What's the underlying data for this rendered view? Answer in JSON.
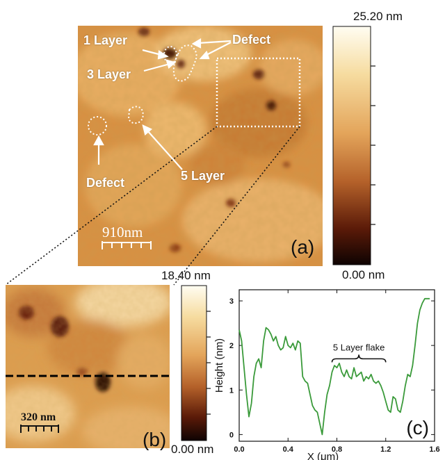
{
  "panel_a": {
    "panel_label": "(a)",
    "annotations": {
      "one_layer": "1 Layer",
      "three_layer": "3 Layer",
      "five_layer": "5 Layer",
      "defect_top": "Defect",
      "defect_left": "Defect"
    },
    "scale_bar": "910nm",
    "colorbar": {
      "max_label": "25.20 nm",
      "min_label": "0.00 nm",
      "max_value": 25.2,
      "min_value": 0.0,
      "unit": "nm"
    }
  },
  "panel_b": {
    "panel_label": "(b)",
    "scale_bar": "320 nm",
    "colorbar": {
      "max_label": "18.40 nm",
      "min_label": "0.00 nm",
      "max_value": 18.4,
      "min_value": 0.0,
      "unit": "nm"
    }
  },
  "colors": {
    "afm_light": "#f5d49a",
    "afm_mid": "#d68c3c",
    "afm_dark": "#2a0a04",
    "line_green": "#3a9a3a"
  },
  "chart_data": {
    "type": "line",
    "panel_label": "(c)",
    "xlabel": "X (μm)",
    "ylabel": "Height (nm)",
    "xlim": [
      0.0,
      1.6
    ],
    "ylim": [
      -0.15,
      3.25
    ],
    "xticks": [
      0.0,
      0.4,
      0.8,
      1.2,
      1.6
    ],
    "xtick_labels": [
      "0.0",
      "0.4",
      "0.8",
      "1.2",
      "1.6"
    ],
    "yticks": [
      0,
      1,
      2,
      3
    ],
    "ytick_labels": [
      "0",
      "1",
      "2",
      "3"
    ],
    "annotation": "5 Layer flake",
    "annotation_range": [
      0.76,
      1.2
    ],
    "series": [
      {
        "color": "#3a9a3a",
        "x": [
          0.0,
          0.02,
          0.04,
          0.06,
          0.08,
          0.1,
          0.12,
          0.14,
          0.16,
          0.18,
          0.2,
          0.22,
          0.24,
          0.26,
          0.28,
          0.3,
          0.32,
          0.34,
          0.36,
          0.38,
          0.4,
          0.42,
          0.44,
          0.46,
          0.48,
          0.5,
          0.52,
          0.54,
          0.56,
          0.58,
          0.6,
          0.62,
          0.64,
          0.66,
          0.68,
          0.7,
          0.72,
          0.74,
          0.76,
          0.78,
          0.8,
          0.82,
          0.84,
          0.86,
          0.88,
          0.9,
          0.92,
          0.94,
          0.96,
          0.98,
          1.0,
          1.02,
          1.04,
          1.06,
          1.08,
          1.1,
          1.12,
          1.14,
          1.16,
          1.18,
          1.2,
          1.22,
          1.24,
          1.26,
          1.28,
          1.3,
          1.32,
          1.34,
          1.36,
          1.38,
          1.4,
          1.42,
          1.44,
          1.46,
          1.48,
          1.5,
          1.52,
          1.54,
          1.56
        ],
        "y": [
          2.35,
          2.1,
          1.5,
          0.9,
          0.4,
          0.7,
          1.3,
          1.6,
          1.7,
          1.5,
          2.1,
          2.4,
          2.35,
          2.25,
          2.1,
          2.2,
          2.0,
          1.9,
          1.95,
          2.2,
          2.0,
          1.95,
          2.05,
          1.9,
          2.1,
          2.05,
          1.3,
          1.2,
          1.15,
          0.9,
          0.65,
          0.55,
          0.5,
          0.25,
          0.0,
          0.5,
          0.9,
          1.1,
          1.4,
          1.55,
          1.5,
          1.6,
          1.4,
          1.3,
          1.45,
          1.3,
          1.25,
          1.5,
          1.3,
          1.35,
          1.4,
          1.2,
          1.3,
          1.25,
          1.35,
          1.2,
          1.15,
          1.2,
          1.1,
          0.95,
          0.75,
          0.55,
          0.5,
          0.85,
          0.8,
          0.55,
          0.5,
          0.75,
          1.1,
          1.35,
          1.3,
          1.55,
          2.0,
          2.5,
          2.8,
          2.95,
          3.05,
          3.05,
          3.05
        ]
      }
    ]
  }
}
